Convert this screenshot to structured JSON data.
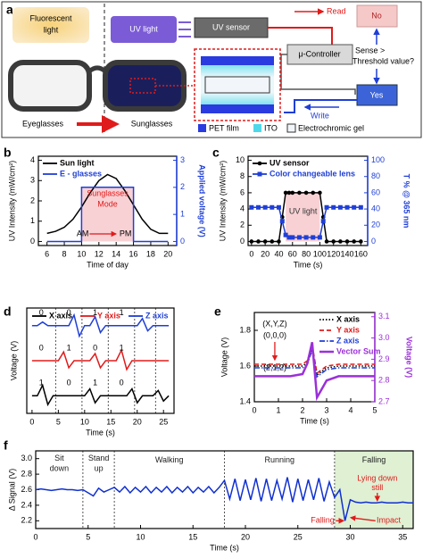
{
  "diagram": {
    "panel": "a",
    "fluorescent": [
      "Fluorescent",
      "light"
    ],
    "uv_light": "UV light",
    "uv_sensor": "UV sensor",
    "read": "Read",
    "no": "No",
    "controller": "μ-Controller",
    "sense": [
      "Sense >",
      "Threshold value?"
    ],
    "yes": "Yes",
    "write": "Write",
    "eyeglasses": "Eyeglasses",
    "sunglasses": "Sunglasses",
    "legend": [
      "PET film",
      "ITO",
      "Electrochromic gel"
    ]
  },
  "chart_data": [
    {
      "panel": "b",
      "type": "line",
      "xlabel": "Time of day",
      "ylabel": "UV Intensity (mW/cm²)",
      "y2label": "Applied voltage (V)",
      "y2color": "#1f3fd6",
      "legend": "upper left",
      "xlim": [
        5,
        21
      ],
      "xticks": [
        6,
        8,
        10,
        12,
        14,
        16,
        18,
        20
      ],
      "ylim": [
        -0.2,
        4.2
      ],
      "yticks": [
        0,
        1,
        2,
        3,
        4
      ],
      "y2lim": [
        -0.15,
        3.15
      ],
      "y2ticks": [
        0,
        1,
        2,
        3
      ],
      "x": [
        6,
        7,
        8,
        9,
        10,
        11,
        12,
        13,
        14,
        15,
        16,
        17,
        18,
        19,
        20
      ],
      "series": [
        {
          "name": "Sun light",
          "color": "#000000",
          "values": [
            0.4,
            0.5,
            0.7,
            1.1,
            1.7,
            2.4,
            3.0,
            3.3,
            3.1,
            2.5,
            1.8,
            1.1,
            0.6,
            0.4,
            0.4
          ]
        },
        {
          "name": "E - glasses",
          "color": "#1f3fd6",
          "axis": "y2",
          "x": [
            6,
            10,
            10,
            16,
            16,
            20
          ],
          "values": [
            0,
            0,
            2,
            2,
            0,
            0
          ]
        }
      ],
      "annotations": [
        "Sunglasses",
        "Mode",
        "AM",
        "PM"
      ]
    },
    {
      "panel": "c",
      "type": "line",
      "xlabel": "Time (s)",
      "ylabel": "UV Intensity (mW/cm²)",
      "y2label": "T % @ 365 nm",
      "y2color": "#1f3fd6",
      "legend": "upper left",
      "xlim": [
        -5,
        170
      ],
      "xticks": [
        0,
        20,
        40,
        60,
        80,
        100,
        120,
        140,
        160
      ],
      "ylim": [
        -0.5,
        10.5
      ],
      "yticks": [
        0,
        2,
        4,
        6,
        8,
        10
      ],
      "y2lim": [
        -5,
        105
      ],
      "y2ticks": [
        0,
        20,
        40,
        60,
        80,
        100
      ],
      "x": [
        0,
        10,
        20,
        30,
        40,
        45,
        50,
        55,
        60,
        70,
        80,
        90,
        100,
        105,
        110,
        120,
        130,
        140,
        150,
        160
      ],
      "series": [
        {
          "name": "UV sensor",
          "color": "#000000",
          "marker": "circle",
          "values": [
            0,
            0,
            0,
            0,
            0,
            3,
            6,
            6,
            6,
            6,
            6,
            6,
            6,
            3,
            0,
            0,
            0,
            0,
            0,
            0
          ]
        },
        {
          "name": "Color changeable lens",
          "color": "#1f3fd6",
          "marker": "square",
          "axis": "y2",
          "values": [
            42,
            42,
            42,
            42,
            42,
            25,
            8,
            5,
            5,
            5,
            5,
            5,
            5,
            25,
            42,
            42,
            42,
            42,
            42,
            42
          ]
        }
      ],
      "annotations": [
        "UV light"
      ]
    },
    {
      "panel": "d",
      "type": "line",
      "xlabel": "Time (s)",
      "ylabel": "Voltage (V)",
      "legend": "top",
      "xlim": [
        -1,
        27
      ],
      "xticks": [
        0,
        5,
        10,
        15,
        20,
        25
      ],
      "ylim": [
        0,
        3
      ],
      "dividers": [
        4.5,
        9.5,
        14.5,
        19.5,
        23.5
      ],
      "x": [
        0,
        1,
        2,
        3,
        4,
        5,
        6,
        7,
        8,
        9,
        10,
        11,
        12,
        13,
        14,
        15,
        16,
        17,
        18,
        19,
        20,
        21,
        22,
        23,
        24,
        25,
        26
      ],
      "series": [
        {
          "name": "X axis",
          "color": "#000000",
          "digits": [
            "1",
            "0",
            "1",
            "0"
          ],
          "values": [
            0.5,
            0.5,
            0.8,
            0.25,
            0.5,
            0.5,
            0.5,
            0.5,
            0.5,
            0.5,
            0.5,
            0.7,
            0.3,
            0.5,
            0.5,
            0.5,
            0.5,
            0.5,
            0.5,
            0.7,
            0.3,
            0.5,
            0.5,
            0.5,
            0.65,
            0.35,
            0.5
          ]
        },
        {
          "name": "Y axis",
          "color": "#e01b1b",
          "digits": [
            "0",
            "1",
            "0",
            "1"
          ],
          "values": [
            1.5,
            1.5,
            1.5,
            1.5,
            1.5,
            1.5,
            1.75,
            1.3,
            1.5,
            1.5,
            1.5,
            1.5,
            1.7,
            1.3,
            1.5,
            1.5,
            1.5,
            1.8,
            1.25,
            1.5,
            1.5,
            1.5,
            1.5,
            1.5,
            1.5,
            1.5,
            1.5
          ]
        },
        {
          "name": "Z axis",
          "color": "#1f3fd6",
          "digits": [
            "0",
            "0",
            "1",
            "1"
          ],
          "values": [
            2.5,
            2.5,
            2.6,
            2.5,
            2.5,
            2.5,
            2.5,
            2.5,
            2.8,
            2.2,
            2.5,
            2.5,
            2.75,
            2.3,
            2.5,
            2.5,
            2.5,
            2.5,
            2.5,
            2.5,
            2.5,
            2.7,
            2.35,
            2.5,
            2.5,
            2.5,
            2.5
          ]
        }
      ]
    },
    {
      "panel": "e",
      "type": "line",
      "xlabel": "Time (s)",
      "ylabel": "Voltage (V)",
      "y2label": "Voltage (V)",
      "y2color": "#9b30d9",
      "legend": "upper right",
      "xlim": [
        0,
        5
      ],
      "xticks": [
        0,
        1,
        2,
        3,
        4,
        5
      ],
      "ylim": [
        1.4,
        1.9
      ],
      "yticks": [
        1.4,
        1.6,
        1.8
      ],
      "y2lim": [
        2.7,
        3.12
      ],
      "y2ticks": [
        2.7,
        2.8,
        2.9,
        {
          "value": 3.0,
          "label": "3.0"
        },
        3.1
      ],
      "x": [
        0,
        0.5,
        1,
        1.5,
        2,
        2.2,
        2.4,
        2.6,
        2.8,
        3,
        3.5,
        4,
        4.5,
        5
      ],
      "series": [
        {
          "name": "X axis",
          "color": "#000000",
          "dash": "dotted",
          "values": [
            1.6,
            1.6,
            1.6,
            1.6,
            1.6,
            1.62,
            1.7,
            1.55,
            1.57,
            1.59,
            1.6,
            1.6,
            1.6,
            1.6
          ]
        },
        {
          "name": "Y axis",
          "color": "#e01b1b",
          "dash": "dashed",
          "values": [
            1.61,
            1.61,
            1.61,
            1.61,
            1.61,
            1.63,
            1.72,
            1.56,
            1.58,
            1.6,
            1.61,
            1.61,
            1.61,
            1.61
          ]
        },
        {
          "name": "Z axis",
          "color": "#1f3fd6",
          "dash": "dashdot",
          "values": [
            1.59,
            1.59,
            1.59,
            1.59,
            1.59,
            1.61,
            1.69,
            1.54,
            1.56,
            1.58,
            1.59,
            1.59,
            1.59,
            1.59
          ]
        },
        {
          "name": "Vector Sum",
          "color": "#9b30d9",
          "axis": "y2",
          "width": 2.5,
          "values": [
            2.82,
            2.82,
            2.82,
            2.82,
            2.83,
            2.88,
            2.98,
            2.72,
            2.76,
            2.8,
            2.82,
            2.82,
            2.82,
            2.82
          ]
        }
      ],
      "annotations": [
        "(X,Y,Z)",
        "(0,0,0)",
        "(2,1,2)"
      ]
    },
    {
      "panel": "f",
      "type": "line",
      "xlabel": "Time (s)",
      "ylabel": "Δ Signal (V)",
      "xlim": [
        0,
        36
      ],
      "xticks": [
        0,
        5,
        10,
        15,
        20,
        25,
        30,
        35
      ],
      "ylim": [
        2.1,
        3.1
      ],
      "yticks": [
        2.2,
        2.4,
        2.6,
        2.8,
        {
          "value": 3.0,
          "label": "3.0"
        }
      ],
      "dividers": [
        4.5,
        7.5,
        18,
        28.5
      ],
      "x": [
        0,
        0.5,
        1,
        1.5,
        2,
        2.5,
        3,
        3.5,
        4,
        4.5,
        5,
        5.5,
        6,
        6.5,
        7,
        7.5,
        8,
        8.5,
        9,
        9.5,
        10,
        10.5,
        11,
        11.5,
        12,
        12.5,
        13,
        13.5,
        14,
        14.5,
        15,
        15.5,
        16,
        16.5,
        17,
        17.5,
        18,
        18.5,
        19,
        19.5,
        20,
        20.5,
        21,
        21.5,
        22,
        22.5,
        23,
        23.5,
        24,
        24.5,
        25,
        25.5,
        26,
        26.5,
        27,
        27.5,
        28,
        28.5,
        29,
        29.5,
        30,
        30.5,
        31,
        31.5,
        32,
        32.5,
        33,
        33.5,
        34,
        34.5,
        35,
        35.5,
        36
      ],
      "series": [
        {
          "color": "#1030d0",
          "values": [
            2.6,
            2.61,
            2.6,
            2.59,
            2.6,
            2.61,
            2.6,
            2.6,
            2.59,
            2.6,
            2.56,
            2.52,
            2.62,
            2.57,
            2.6,
            2.63,
            2.57,
            2.64,
            2.56,
            2.63,
            2.57,
            2.64,
            2.56,
            2.63,
            2.57,
            2.64,
            2.56,
            2.63,
            2.57,
            2.64,
            2.56,
            2.63,
            2.57,
            2.64,
            2.56,
            2.63,
            2.72,
            2.48,
            2.74,
            2.46,
            2.73,
            2.47,
            2.75,
            2.45,
            2.74,
            2.46,
            2.72,
            2.48,
            2.76,
            2.44,
            2.74,
            2.46,
            2.73,
            2.47,
            2.75,
            2.45,
            2.7,
            2.5,
            2.6,
            2.2,
            2.47,
            2.44,
            2.43,
            2.44,
            2.43,
            2.43,
            2.44,
            2.43,
            2.43,
            2.43,
            2.44,
            2.43,
            2.43
          ]
        }
      ],
      "annotations": [
        "Sit",
        "down",
        "Stand",
        "up",
        "Walking",
        "Running",
        "Falling",
        "Lying down",
        "still",
        "Falling",
        "Impact"
      ]
    }
  ]
}
